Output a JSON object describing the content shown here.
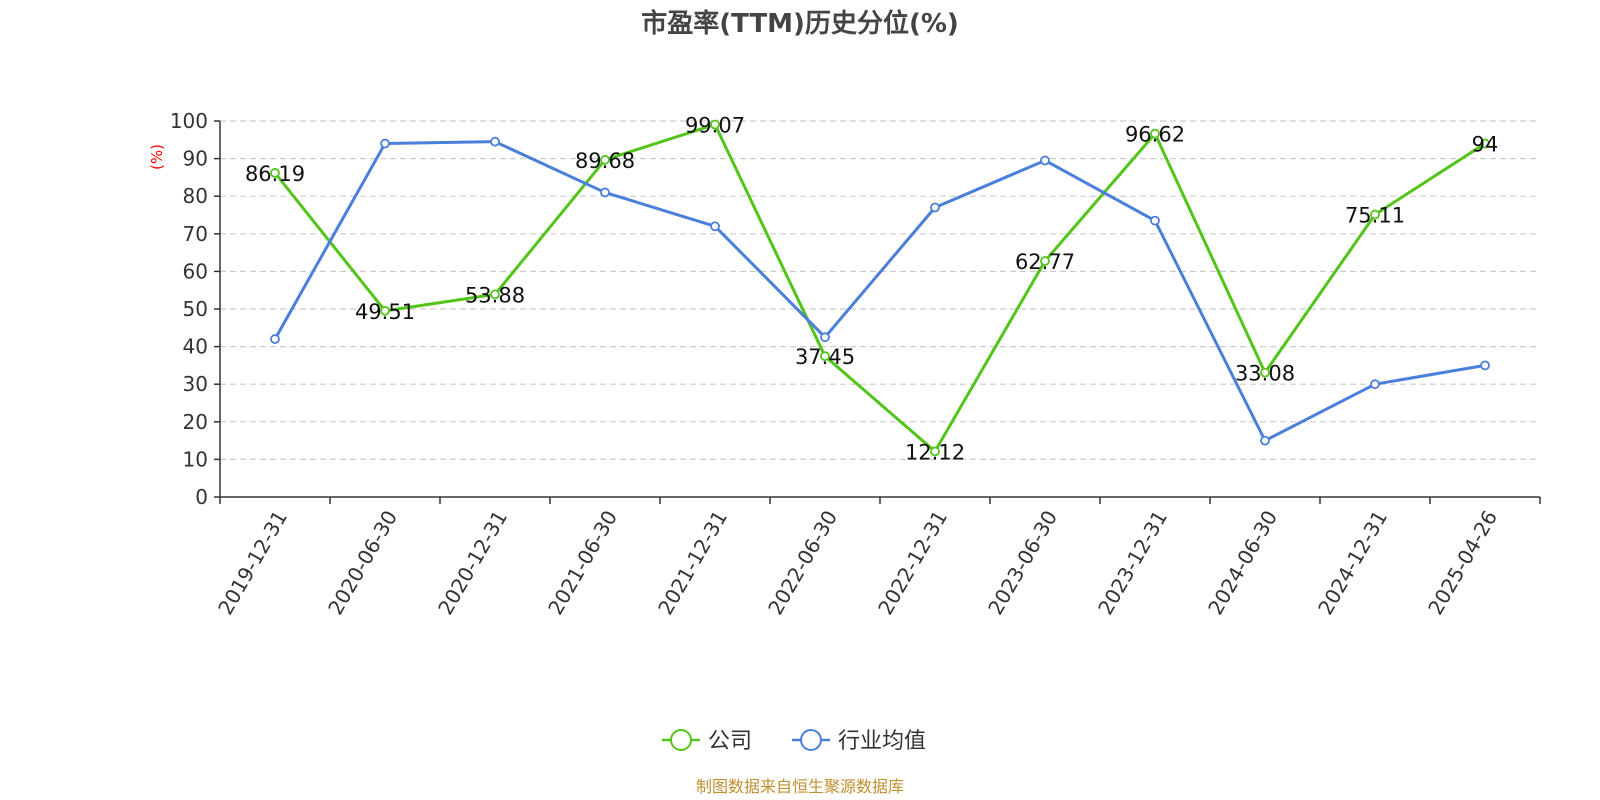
{
  "chart_data": {
    "type": "line",
    "title": "市盈率(TTM)历史分位(%)",
    "ylabel": "(%)",
    "xlabel": "",
    "ylim": [
      0,
      100
    ],
    "yticks": [
      0,
      10,
      20,
      30,
      40,
      50,
      60,
      70,
      80,
      90,
      100
    ],
    "grid": true,
    "legend_position": "bottom",
    "categories": [
      "2019-12-31",
      "2020-06-30",
      "2020-12-31",
      "2021-06-30",
      "2021-12-31",
      "2022-06-30",
      "2022-12-31",
      "2023-06-30",
      "2023-12-31",
      "2024-06-30",
      "2024-12-31",
      "2025-04-26"
    ],
    "series": [
      {
        "name": "公司",
        "color": "#52c41a",
        "values": [
          86.19,
          49.51,
          53.88,
          89.68,
          99.07,
          37.45,
          12.12,
          62.77,
          96.62,
          33.08,
          75.11,
          94
        ],
        "labels": [
          "86.19",
          "49.51",
          "53.88",
          "89.68",
          "99.07",
          "37.45",
          "12.12",
          "62.77",
          "96.62",
          "33.08",
          "75.11",
          "94"
        ]
      },
      {
        "name": "行业均值",
        "color": "#4a7fdc",
        "values": [
          42,
          94,
          94.5,
          81,
          72,
          42.5,
          77,
          89.5,
          73.5,
          15,
          30,
          35
        ]
      }
    ]
  },
  "source": "制图数据来自恒生聚源数据库"
}
